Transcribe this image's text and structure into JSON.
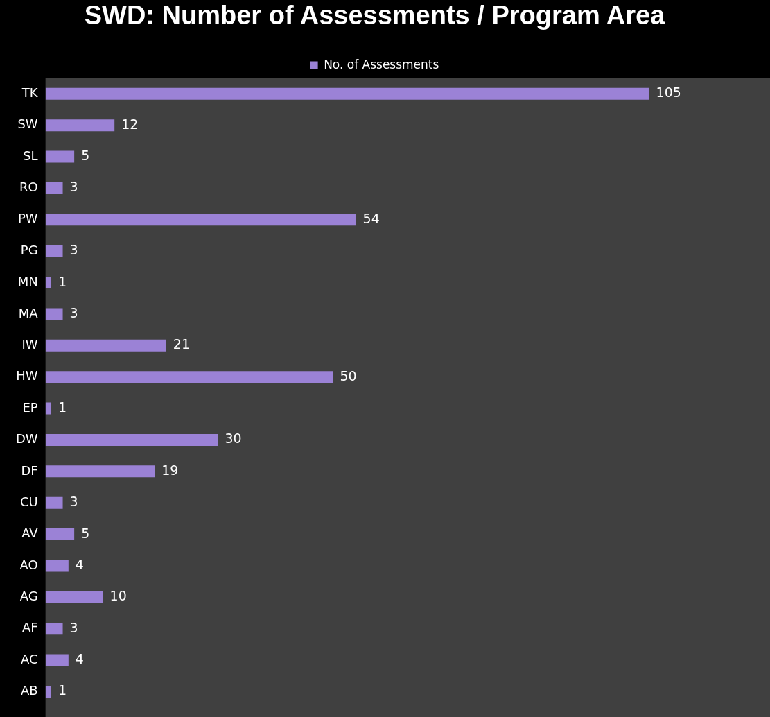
{
  "chart_data": {
    "type": "bar",
    "title": "SWD: Number of Assessments / Program Area",
    "orientation": "horizontal",
    "categories": [
      "TK",
      "SW",
      "SL",
      "RO",
      "PW",
      "PG",
      "MN",
      "MA",
      "IW",
      "HW",
      "EP",
      "DW",
      "DF",
      "CU",
      "AV",
      "AO",
      "AG",
      "AF",
      "AC",
      "AB"
    ],
    "series": [
      {
        "name": "No. of Assessments",
        "color": "#9b82d6",
        "values": [
          105,
          12,
          5,
          3,
          54,
          3,
          1,
          3,
          21,
          50,
          1,
          30,
          19,
          3,
          5,
          4,
          10,
          3,
          4,
          1
        ]
      }
    ],
    "data_labels": true,
    "legend": "top",
    "grid": false
  }
}
